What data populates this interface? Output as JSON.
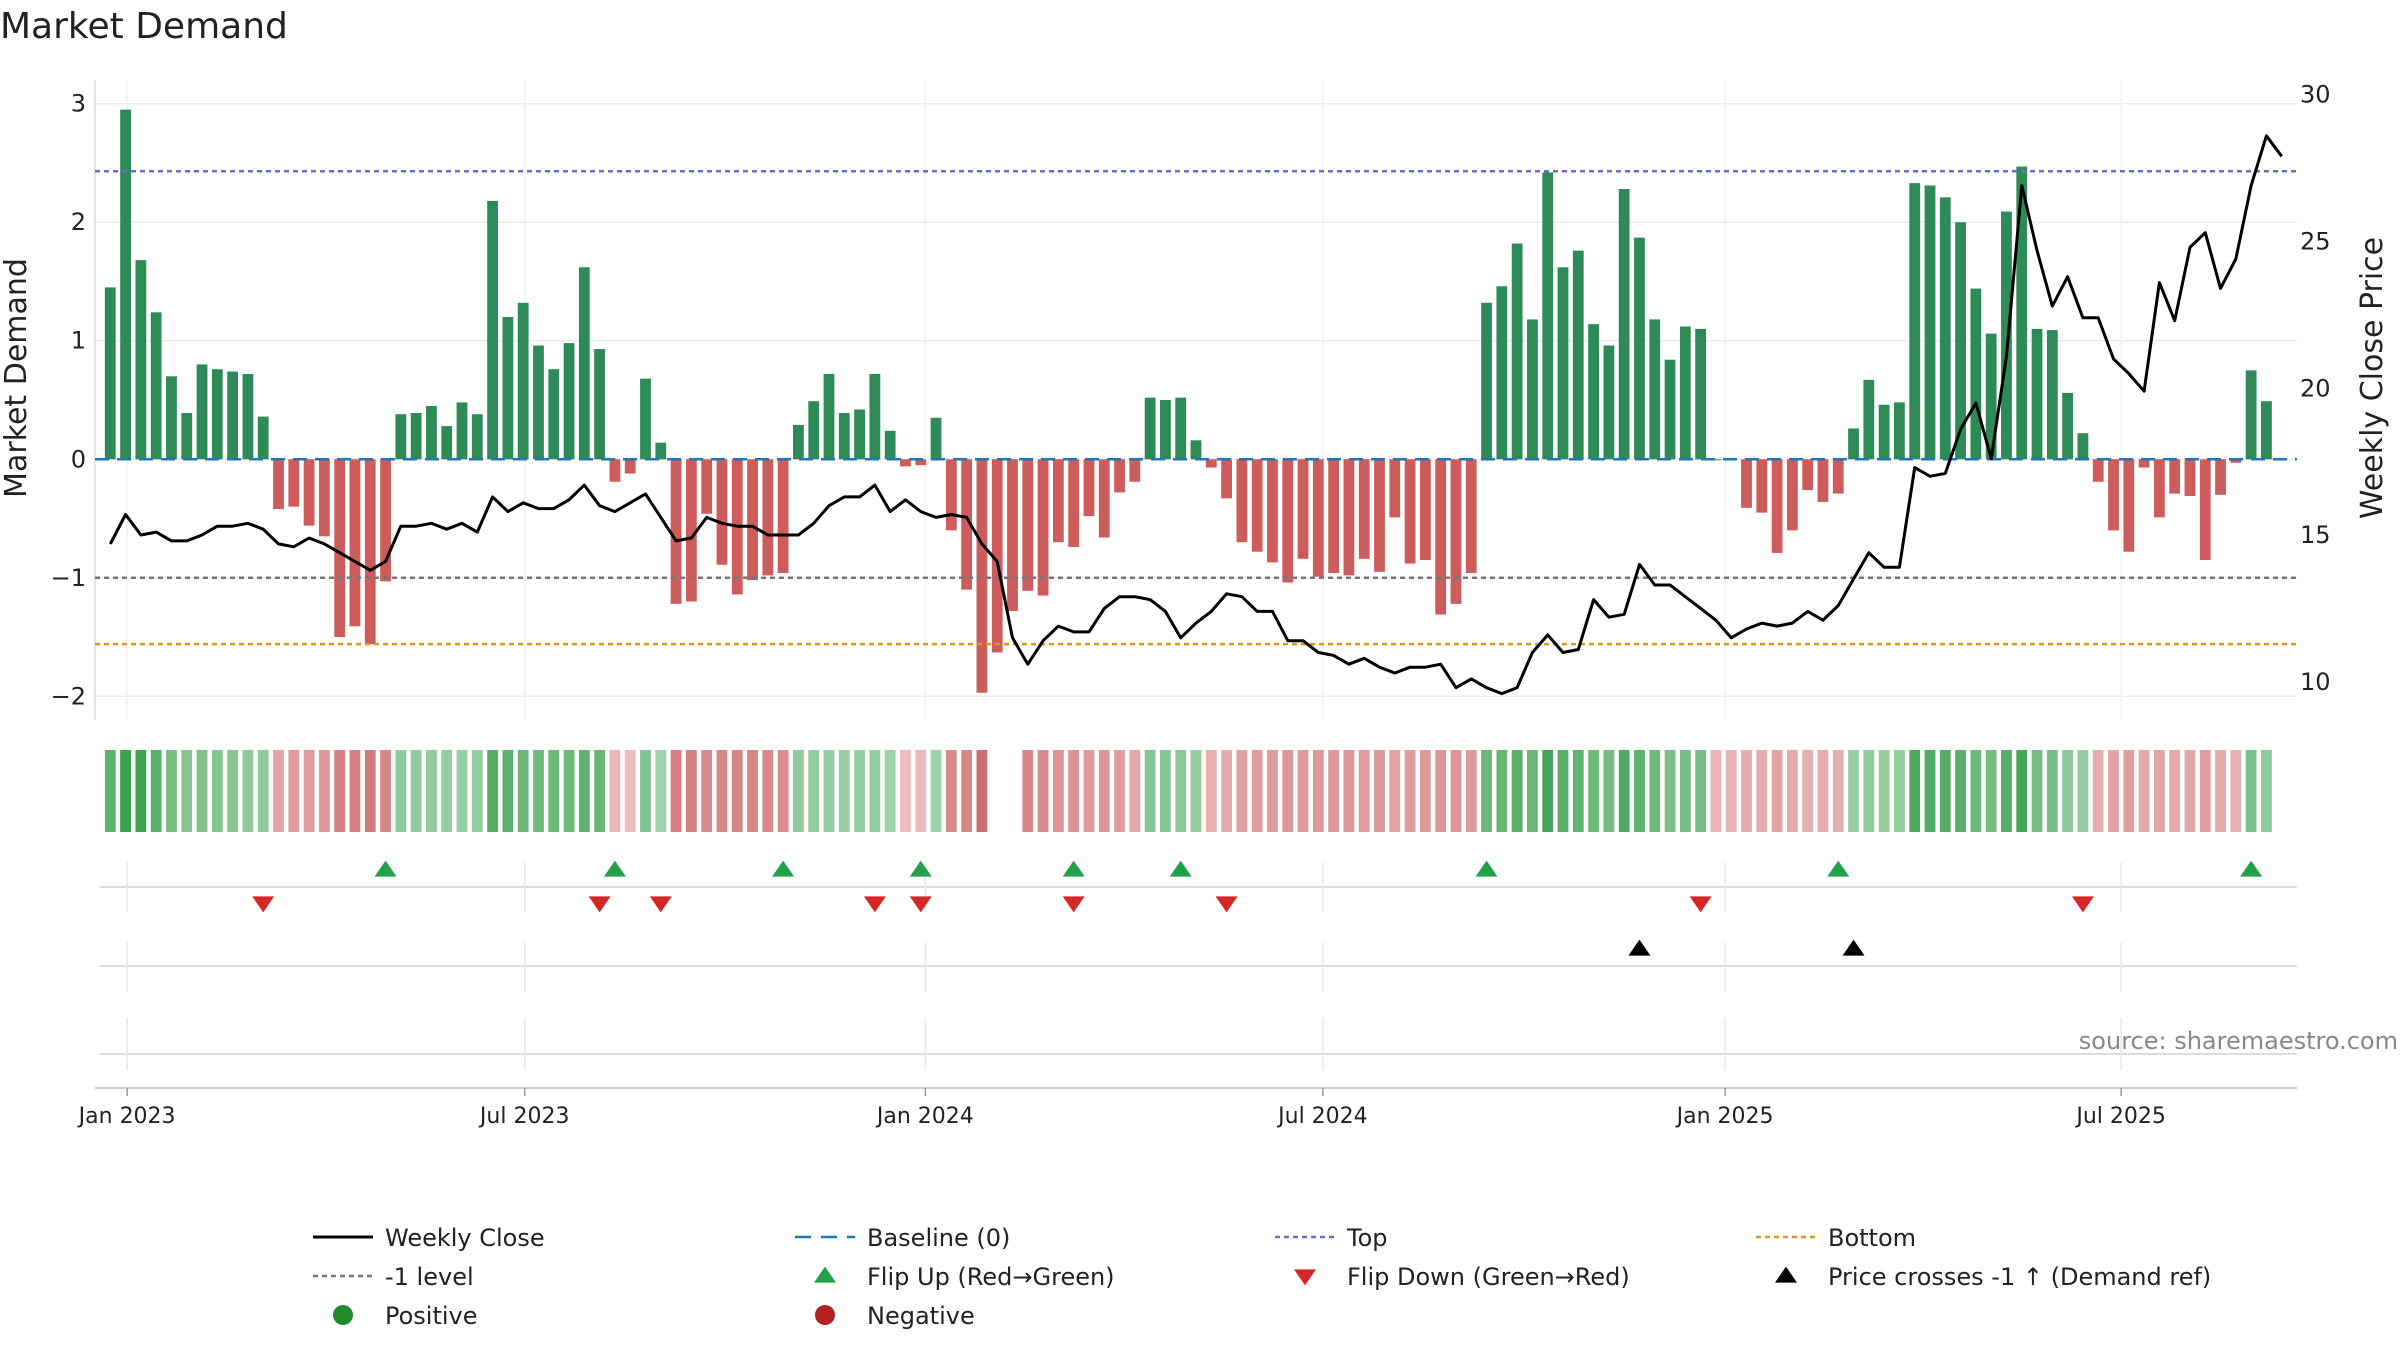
{
  "title": "Market Demand",
  "source": "source: sharemaestro.com",
  "colors": {
    "positive": "#2e8b57",
    "negative": "#cd5c5c",
    "close": "#000000",
    "top": "#6c6cc9",
    "bottom": "#d99a1a",
    "minus1": "#777777",
    "baseline": "#1f77b4",
    "flipUp": "#22a04b",
    "flipDown": "#d62728",
    "cross": "#000000",
    "legendPositive": "#1f8a2a",
    "legendNegative": "#b22222"
  },
  "chart_data": {
    "type": "bar+line",
    "title": "Market Demand",
    "ylabel_left": "Market Demand",
    "ylabel_right": "Weekly Close Price",
    "ylim_left": [
      -2.2,
      3.2
    ],
    "ylim_right": [
      8.7,
      30.5
    ],
    "yticks_left": [
      {
        "v": 3,
        "label": "3"
      },
      {
        "v": 2,
        "label": "2"
      },
      {
        "v": 1,
        "label": "1"
      },
      {
        "v": 0,
        "label": "0"
      },
      {
        "v": -1,
        "label": "−1"
      },
      {
        "v": -2,
        "label": "−2"
      }
    ],
    "yticks_right": [
      {
        "v": 30,
        "label": "30"
      },
      {
        "v": 25,
        "label": "25"
      },
      {
        "v": 20,
        "label": "20"
      },
      {
        "v": 15,
        "label": "15"
      },
      {
        "v": 10,
        "label": "10"
      }
    ],
    "x_ticks": [
      {
        "w": 1.1,
        "label": "Jan 2023"
      },
      {
        "w": 27.1,
        "label": "Jul 2023"
      },
      {
        "w": 53.3,
        "label": "Jan 2024"
      },
      {
        "w": 79.3,
        "label": "Jul 2024"
      },
      {
        "w": 105.6,
        "label": "Jan 2025"
      },
      {
        "w": 131.5,
        "label": "Jul 2025"
      }
    ],
    "week_range": [
      -1,
      143
    ],
    "top_level": 2.43,
    "bottom_level": -1.56,
    "minus1_level": -1,
    "demand": [
      1.45,
      2.95,
      1.68,
      1.24,
      0.7,
      0.39,
      0.8,
      0.76,
      0.74,
      0.72,
      0.36,
      -0.42,
      -0.4,
      -0.56,
      -0.65,
      -1.5,
      -1.41,
      -1.56,
      -1.03,
      0.38,
      0.39,
      0.45,
      0.28,
      0.48,
      0.38,
      2.18,
      1.2,
      1.32,
      0.96,
      0.76,
      0.98,
      1.62,
      0.93,
      -0.19,
      -0.12,
      0.68,
      0.14,
      -1.22,
      -1.2,
      -0.46,
      -0.89,
      -1.14,
      -1.02,
      -0.98,
      -0.96,
      0.29,
      0.49,
      0.72,
      0.39,
      0.42,
      0.72,
      0.24,
      -0.06,
      -0.05,
      0.35,
      -0.6,
      -1.1,
      -1.97,
      -1.63,
      -1.28,
      -1.11,
      -1.15,
      -0.7,
      -0.74,
      -0.48,
      -0.66,
      -0.28,
      -0.19,
      0.52,
      0.5,
      0.52,
      0.16,
      -0.07,
      -0.33,
      -0.7,
      -0.78,
      -0.87,
      -1.04,
      -0.84,
      -0.99,
      -0.96,
      -0.98,
      -0.84,
      -0.95,
      -0.49,
      -0.88,
      -0.85,
      -1.31,
      -1.22,
      -0.96,
      1.32,
      1.46,
      1.82,
      1.18,
      2.42,
      1.62,
      1.76,
      1.14,
      0.96,
      2.28,
      1.87,
      1.18,
      0.84,
      1.12,
      1.1,
      0,
      0,
      -0.41,
      -0.45,
      -0.79,
      -0.6,
      -0.26,
      -0.36,
      -0.29,
      0.26,
      0.67,
      0.46,
      0.48,
      2.33,
      2.31,
      2.21,
      2.0,
      1.44,
      1.06,
      2.09,
      2.47,
      1.1,
      1.09,
      0.56,
      0.22,
      -0.19,
      -0.6,
      -0.78,
      -0.07,
      -0.49,
      -0.29,
      -0.31,
      -0.85,
      -0.3,
      -0.03,
      0.75,
      0.49
    ],
    "close": [
      14.7,
      15.7,
      15.0,
      15.1,
      14.8,
      14.8,
      15.0,
      15.3,
      15.3,
      15.4,
      15.2,
      14.7,
      14.6,
      14.9,
      14.7,
      14.4,
      14.1,
      13.8,
      14.1,
      15.3,
      15.3,
      15.4,
      15.2,
      15.4,
      15.1,
      16.3,
      15.8,
      16.1,
      15.9,
      15.9,
      16.2,
      16.7,
      16.0,
      15.8,
      16.1,
      16.4,
      15.6,
      14.8,
      14.9,
      15.6,
      15.4,
      15.3,
      15.3,
      15.0,
      15.0,
      15.0,
      15.4,
      16.0,
      16.3,
      16.3,
      16.7,
      15.8,
      16.2,
      15.8,
      15.6,
      15.7,
      15.6,
      14.7,
      14.1,
      11.5,
      10.6,
      11.4,
      11.9,
      11.7,
      11.7,
      12.5,
      12.9,
      12.9,
      12.8,
      12.4,
      11.5,
      12.0,
      12.4,
      13.0,
      12.9,
      12.4,
      12.4,
      11.4,
      11.4,
      11.0,
      10.9,
      10.6,
      10.8,
      10.5,
      10.3,
      10.5,
      10.5,
      10.6,
      9.8,
      10.1,
      9.8,
      9.6,
      9.8,
      11.0,
      11.6,
      11.0,
      11.1,
      12.8,
      12.2,
      12.3,
      14.0,
      13.3,
      13.3,
      12.9,
      12.5,
      12.1,
      11.5,
      11.8,
      12.0,
      11.9,
      12.0,
      12.4,
      12.1,
      12.6,
      13.5,
      14.4,
      13.9,
      13.9,
      17.3,
      17.0,
      17.1,
      18.6,
      19.5,
      17.6,
      21.1,
      26.9,
      24.7,
      22.8,
      23.8,
      22.4,
      22.4,
      21.0,
      20.5,
      19.9,
      23.6,
      22.3,
      24.8,
      25.3,
      23.4,
      24.4,
      26.9,
      28.6,
      27.9
    ],
    "colorband": [
      0.79,
      1,
      0.97,
      0.81,
      0.62,
      0.52,
      0.58,
      0.55,
      0.52,
      0.49,
      0.47,
      -0.44,
      -0.5,
      -0.51,
      -0.53,
      -0.72,
      -0.71,
      -0.77,
      -0.66,
      0.48,
      0.46,
      0.46,
      0.43,
      0.41,
      0.44,
      0.84,
      0.79,
      0.71,
      0.68,
      0.69,
      0.7,
      0.79,
      0.72,
      -0.3,
      -0.25,
      0.56,
      0.38,
      -0.73,
      -0.72,
      -0.63,
      -0.67,
      -0.68,
      -0.67,
      -0.65,
      -0.61,
      0.47,
      0.45,
      0.44,
      0.42,
      0.43,
      0.45,
      0.4,
      -0.25,
      -0.27,
      0.38,
      -0.64,
      -0.66,
      -0.85,
      0,
      0,
      -0.67,
      -0.64,
      -0.55,
      -0.57,
      -0.51,
      -0.54,
      -0.48,
      -0.42,
      0.54,
      0.52,
      0.51,
      0.44,
      -0.34,
      -0.38,
      -0.47,
      -0.49,
      -0.5,
      -0.54,
      -0.51,
      -0.53,
      -0.52,
      -0.53,
      -0.51,
      -0.52,
      -0.45,
      -0.5,
      -0.52,
      -0.56,
      -0.55,
      -0.52,
      0.71,
      0.73,
      0.81,
      0.7,
      0.95,
      0.82,
      0.79,
      0.68,
      0.64,
      0.88,
      0.79,
      0.68,
      0.6,
      0.62,
      0.61,
      -0.3,
      -0.31,
      -0.36,
      -0.37,
      -0.44,
      -0.4,
      -0.34,
      -0.36,
      -0.35,
      0.42,
      0.47,
      0.44,
      0.45,
      0.88,
      0.86,
      0.84,
      0.8,
      0.71,
      0.64,
      0.82,
      0.93,
      0.65,
      0.64,
      0.5,
      0.44,
      -0.35,
      -0.45,
      -0.48,
      -0.4,
      -0.44,
      -0.4,
      -0.41,
      -0.5,
      -0.4,
      -0.33,
      0.6,
      0.48
    ],
    "flip_up_weeks": [
      18,
      33,
      44,
      53,
      63,
      70,
      90,
      113,
      140
    ],
    "flip_down_weeks": [
      10,
      32,
      36,
      50,
      53,
      63,
      73,
      104,
      129
    ],
    "cross_weeks": [
      100,
      114
    ]
  },
  "legend": [
    {
      "key": "close",
      "label": "Weekly Close"
    },
    {
      "key": "baseline",
      "label": "Baseline (0)"
    },
    {
      "key": "top",
      "label": "Top"
    },
    {
      "key": "bottom",
      "label": "Bottom"
    },
    {
      "key": "minus1",
      "label": "-1 level"
    },
    {
      "key": "flipUp",
      "label": "Flip Up (Red→Green)"
    },
    {
      "key": "flipDown",
      "label": "Flip Down (Green→Red)"
    },
    {
      "key": "cross",
      "label": "Price crosses -1 ↑ (Demand ref)"
    },
    {
      "key": "positive",
      "label": "Positive"
    },
    {
      "key": "negative",
      "label": "Negative"
    }
  ]
}
